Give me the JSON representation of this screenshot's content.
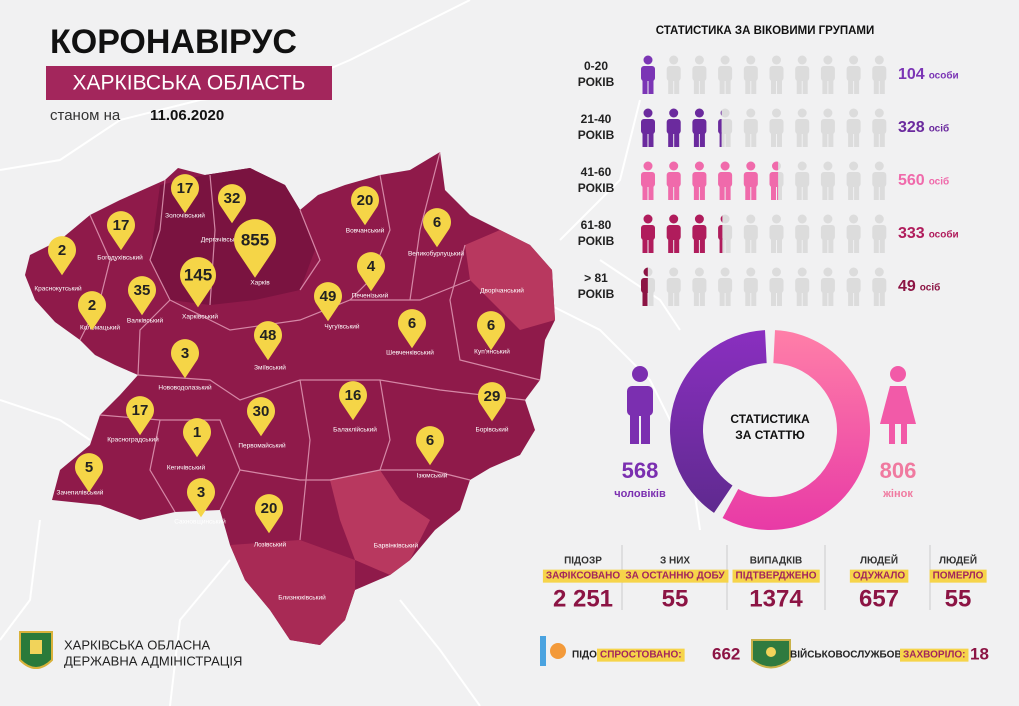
{
  "header": {
    "title": "КОРОНАВІРУС",
    "subtitle": "ХАРКІВСЬКА ОБЛАСТЬ",
    "date_prefix": "станом на",
    "date": "11.06.2020"
  },
  "map": {
    "districts": [
      {
        "name": "Золочівський",
        "cases": 17
      },
      {
        "name": "Дергачівський",
        "cases": 32
      },
      {
        "name": "Харків",
        "cases": 855
      },
      {
        "name": "Харківський",
        "cases": 145
      },
      {
        "name": "Богодухівський",
        "cases": 17
      },
      {
        "name": "Краснокутський",
        "cases": 2
      },
      {
        "name": "Валківський",
        "cases": 35
      },
      {
        "name": "Коломацький",
        "cases": 2
      },
      {
        "name": "Вовчанський",
        "cases": 20
      },
      {
        "name": "Великобурлуцький",
        "cases": 6
      },
      {
        "name": "Печенізький",
        "cases": 4
      },
      {
        "name": "Чугуївський",
        "cases": 49
      },
      {
        "name": "Шевченківський",
        "cases": 6
      },
      {
        "name": "Куп'янський",
        "cases": 6
      },
      {
        "name": "Дворічанський",
        "cases": null
      },
      {
        "name": "Зміївський",
        "cases": 48
      },
      {
        "name": "Нововодолазький",
        "cases": 3
      },
      {
        "name": "Красноградський",
        "cases": 17
      },
      {
        "name": "Кегичівський",
        "cases": 1
      },
      {
        "name": "Первомайський",
        "cases": 30
      },
      {
        "name": "Балаклійський",
        "cases": 16
      },
      {
        "name": "Борівський",
        "cases": 29
      },
      {
        "name": "Ізюмський",
        "cases": 6
      },
      {
        "name": "Зачепилівський",
        "cases": 5
      },
      {
        "name": "Сахновщинський",
        "cases": 3
      },
      {
        "name": "Лозівський",
        "cases": 20
      },
      {
        "name": "Барвінківський",
        "cases": null
      },
      {
        "name": "Близнюківський",
        "cases": null
      }
    ]
  },
  "age_groups": {
    "title": "СТАТИСТИКА ЗА ВІКОВИМИ ГРУПАМИ",
    "xlim": [
      0,
      1000
    ],
    "groups": [
      {
        "range": "0-20",
        "unit": "РОКІВ",
        "value": 104,
        "value_unit": "особи",
        "color": "#7b35b5"
      },
      {
        "range": "21-40",
        "unit": "РОКІВ",
        "value": 328,
        "value_unit": "осіб",
        "color": "#6b2a9e"
      },
      {
        "range": "41-60",
        "unit": "РОКІВ",
        "value": 560,
        "value_unit": "осіб",
        "color": "#f06aab"
      },
      {
        "range": "61-80",
        "unit": "РОКІВ",
        "value": 333,
        "value_unit": "особи",
        "color": "#b01c5c"
      },
      {
        "range": "> 81",
        "unit": "РОКІВ",
        "value": 49,
        "value_unit": "осіб",
        "color": "#8c1444"
      }
    ]
  },
  "gender": {
    "title": "СТАТИСТИКА ЗА СТАТТЮ",
    "men": {
      "value": 568,
      "label": "чоловіків",
      "color": "#7b2fb0"
    },
    "women": {
      "value": 806,
      "label": "жінок",
      "color": "#f25aa8"
    }
  },
  "totals": [
    {
      "line1": "ПІДОЗР",
      "line2": "ЗАФІКСОВАНО",
      "value": 2251,
      "value_label": "2 251"
    },
    {
      "line1": "З НИХ",
      "line2": "ЗА ОСТАННЮ ДОБУ",
      "value": 55
    },
    {
      "line1": "ВИПАДКІВ",
      "line2": "ПІДТВЕРДЖЕНО",
      "value": 1374
    },
    {
      "line1": "ЛЮДЕЙ",
      "line2": "ОДУЖАЛО",
      "value": 657
    },
    {
      "line1": "ЛЮДЕЙ",
      "line2": "ПОМЕРЛО",
      "value": 55
    }
  ],
  "extra": [
    {
      "line1": "ПІДОЗР",
      "line2": "СПРОСТОВАНО:",
      "value": 662
    },
    {
      "line1": "ВІЙСЬКОВОСЛУЖБОВЦІВ",
      "line2": "ЗАХВОРІЛО:",
      "value": 18
    }
  ],
  "footer": {
    "line1": "ХАРКІВСЬКА ОБЛАСНА",
    "line2": "ДЕРЖАВНА АДМІНІСТРАЦІЯ"
  }
}
